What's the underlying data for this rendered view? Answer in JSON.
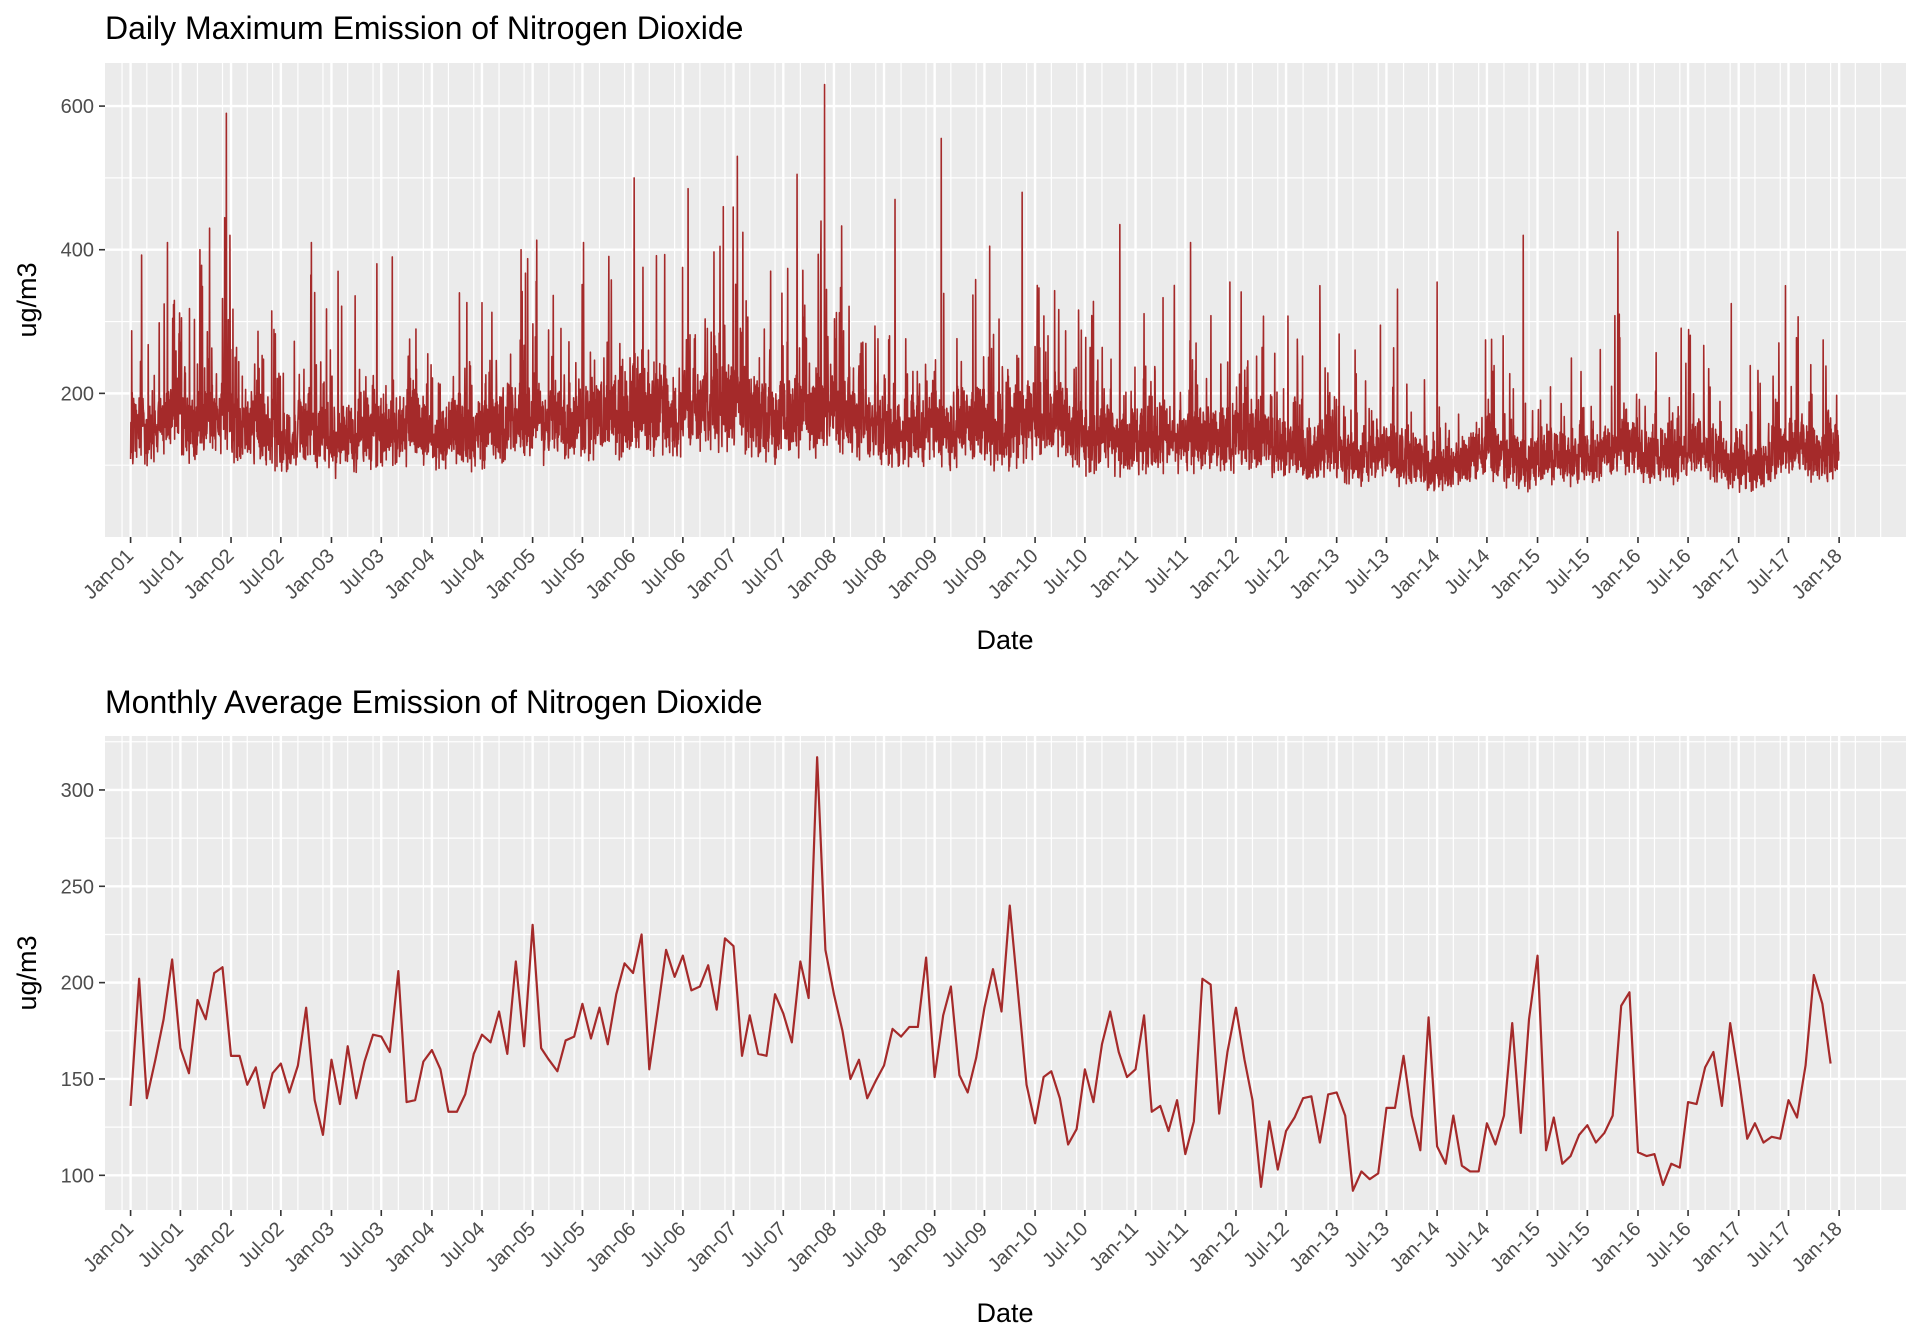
{
  "colors": {
    "line": "#a52a2a",
    "panel_bg": "#ebebeb",
    "grid": "#ffffff",
    "tick_text": "#4d4d4d",
    "tick_mark": "#333333"
  },
  "chart_data": [
    {
      "type": "line",
      "title": "Daily Maximum Emission of Nitrogen Dioxide",
      "xlabel": "Date",
      "ylabel": "ug/m3",
      "x_type": "date",
      "x_range": [
        "2000-09-30",
        "2018-09-01"
      ],
      "ylim": [
        0,
        660
      ],
      "y_ticks": [
        200,
        400,
        600
      ],
      "y_minor": [
        100,
        300,
        500
      ],
      "x_tick_labels": [
        "Jan-01",
        "Jul-01",
        "Jan-02",
        "Jul-02",
        "Jan-03",
        "Jul-03",
        "Jan-04",
        "Jul-04",
        "Jan-05",
        "Jul-05",
        "Jan-06",
        "Jul-06",
        "Jan-07",
        "Jul-07",
        "Jan-08",
        "Jul-08",
        "Jan-09",
        "Jul-09",
        "Jan-10",
        "Jul-10",
        "Jan-11",
        "Jul-11",
        "Jan-12",
        "Jul-12",
        "Jan-13",
        "Jul-13",
        "Jan-14",
        "Jul-14",
        "Jan-15",
        "Jul-15",
        "Jan-16",
        "Jul-16",
        "Jan-17",
        "Jul-17",
        "Jan-18"
      ],
      "grid": true,
      "series": [
        {
          "x_start": "2001-01-01",
          "x_end": "2017-12-31",
          "x_step": "1 day",
          "monthly_baseline": [
            150,
            168,
            145,
            160,
            170,
            190,
            160,
            150,
            170,
            180,
            190,
            200,
            165,
            155,
            160,
            150,
            150,
            155,
            145,
            140,
            150,
            160,
            160,
            150,
            140,
            140,
            145,
            150,
            150,
            160,
            150,
            150,
            160,
            170,
            160,
            150,
            140,
            140,
            150,
            155,
            145,
            150,
            150,
            160,
            165,
            170,
            165,
            165,
            180,
            160,
            175,
            170,
            165,
            170,
            170,
            175,
            165,
            180,
            175,
            175,
            185,
            180,
            185,
            190,
            175,
            165,
            185,
            190,
            190,
            190,
            195,
            195,
            200,
            190,
            180,
            175,
            170,
            165,
            170,
            180,
            190,
            185,
            175,
            180,
            185,
            180,
            175,
            160,
            150,
            150,
            150,
            155,
            150,
            150,
            155,
            160,
            155,
            150,
            160,
            160,
            165,
            165,
            155,
            150,
            150,
            160,
            165,
            170,
            170,
            170,
            180,
            175,
            150,
            145,
            140,
            140,
            150,
            140,
            135,
            135,
            140,
            145,
            150,
            150,
            150,
            145,
            140,
            145,
            140,
            140,
            140,
            145,
            150,
            155,
            150,
            150,
            140,
            135,
            130,
            125,
            120,
            120,
            125,
            130,
            120,
            115,
            110,
            115,
            120,
            125,
            120,
            115,
            110,
            110,
            105,
            100,
            100,
            105,
            110,
            115,
            120,
            125,
            125,
            125,
            115,
            110,
            105,
            110,
            115,
            120,
            120,
            115,
            110,
            115,
            115,
            120,
            125,
            130,
            135,
            130,
            120,
            115,
            110,
            110,
            115,
            125,
            130,
            130,
            125,
            120,
            110,
            105,
            100,
            100,
            105,
            110,
            120,
            130,
            135,
            130,
            125,
            120,
            120,
            120,
            125,
            130,
            140,
            150,
            155,
            150,
            140,
            135
          ],
          "peaks": [
            [
              "2001-05-15",
              410
            ],
            [
              "2001-09-10",
              400
            ],
            [
              "2001-10-15",
              430
            ],
            [
              "2001-12-15",
              590
            ],
            [
              "2001-12-28",
              420
            ],
            [
              "2002-10-20",
              410
            ],
            [
              "2003-01-25",
              370
            ],
            [
              "2003-08-10",
              390
            ],
            [
              "2004-04-10",
              340
            ],
            [
              "2004-11-20",
              400
            ],
            [
              "2005-07-05",
              410
            ],
            [
              "2006-01-05",
              500
            ],
            [
              "2006-07-20",
              485
            ],
            [
              "2006-11-25",
              460
            ],
            [
              "2007-01-15",
              530
            ],
            [
              "2007-08-20",
              505
            ],
            [
              "2007-11-15",
              440
            ],
            [
              "2007-11-28",
              630
            ],
            [
              "2008-08-10",
              470
            ],
            [
              "2009-01-25",
              555
            ],
            [
              "2009-07-20",
              405
            ],
            [
              "2009-11-15",
              480
            ],
            [
              "2010-11-05",
              435
            ],
            [
              "2011-07-20",
              410
            ],
            [
              "2011-12-10",
              355
            ],
            [
              "2012-11-01",
              350
            ],
            [
              "2013-08-10",
              345
            ],
            [
              "2014-01-01",
              355
            ],
            [
              "2014-11-10",
              420
            ],
            [
              "2015-10-20",
              425
            ],
            [
              "2016-12-05",
              325
            ],
            [
              "2017-06-20",
              350
            ]
          ],
          "seed": 12345
        }
      ]
    },
    {
      "type": "line",
      "title": "Monthly Average Emission of Nitrogen Dioxide",
      "xlabel": "Date",
      "ylabel": "ug/m3",
      "x_type": "date",
      "x_range": [
        "2000-09-30",
        "2018-09-01"
      ],
      "ylim": [
        82,
        328
      ],
      "y_ticks": [
        100,
        150,
        200,
        250,
        300
      ],
      "y_minor": [
        125,
        175,
        225,
        275,
        325
      ],
      "x_tick_labels": [
        "Jan-01",
        "Jul-01",
        "Jan-02",
        "Jul-02",
        "Jan-03",
        "Jul-03",
        "Jan-04",
        "Jul-04",
        "Jan-05",
        "Jul-05",
        "Jan-06",
        "Jul-06",
        "Jan-07",
        "Jul-07",
        "Jan-08",
        "Jul-08",
        "Jan-09",
        "Jul-09",
        "Jan-10",
        "Jul-10",
        "Jan-11",
        "Jul-11",
        "Jan-12",
        "Jul-12",
        "Jan-13",
        "Jul-13",
        "Jan-14",
        "Jul-14",
        "Jan-15",
        "Jul-15",
        "Jan-16",
        "Jul-16",
        "Jan-17",
        "Jul-17",
        "Jan-18"
      ],
      "grid": true,
      "series": [
        {
          "x_start": "2001-01-01",
          "x_step": "1 month",
          "values": [
            136,
            202,
            140,
            160,
            181,
            212,
            166,
            153,
            191,
            181,
            205,
            208,
            162,
            162,
            147,
            156,
            135,
            153,
            158,
            143,
            157,
            187,
            139,
            121,
            160,
            137,
            167,
            140,
            159,
            173,
            172,
            164,
            206,
            138,
            139,
            159,
            165,
            155,
            133,
            133,
            142,
            163,
            173,
            169,
            185,
            163,
            211,
            167,
            230,
            166,
            160,
            154,
            170,
            172,
            189,
            171,
            187,
            168,
            194,
            210,
            205,
            225,
            155,
            186,
            217,
            203,
            214,
            196,
            198,
            209,
            186,
            223,
            219,
            162,
            183,
            163,
            162,
            194,
            184,
            169,
            211,
            192,
            317,
            217,
            194,
            175,
            150,
            160,
            140,
            149,
            157,
            176,
            172,
            177,
            177,
            213,
            151,
            183,
            198,
            152,
            143,
            161,
            187,
            207,
            185,
            240,
            193,
            147,
            127,
            151,
            154,
            140,
            116,
            124,
            155,
            138,
            168,
            185,
            164,
            151,
            155,
            183,
            133,
            136,
            123,
            139,
            111,
            128,
            202,
            199,
            132,
            164,
            187,
            160,
            139,
            94,
            128,
            103,
            123,
            130,
            140,
            141,
            117,
            142,
            143,
            131,
            92,
            102,
            98,
            101,
            135,
            135,
            162,
            131,
            113,
            182,
            115,
            106,
            131,
            105,
            102,
            102,
            127,
            116,
            131,
            179,
            122,
            181,
            214,
            113,
            130,
            106,
            110,
            121,
            126,
            117,
            122,
            131,
            188,
            195,
            112,
            110,
            111,
            95,
            106,
            104,
            138,
            137,
            156,
            164,
            136,
            179,
            151,
            119,
            127,
            117,
            120,
            119,
            139,
            130,
            157,
            204,
            189,
            158
          ]
        }
      ]
    }
  ]
}
